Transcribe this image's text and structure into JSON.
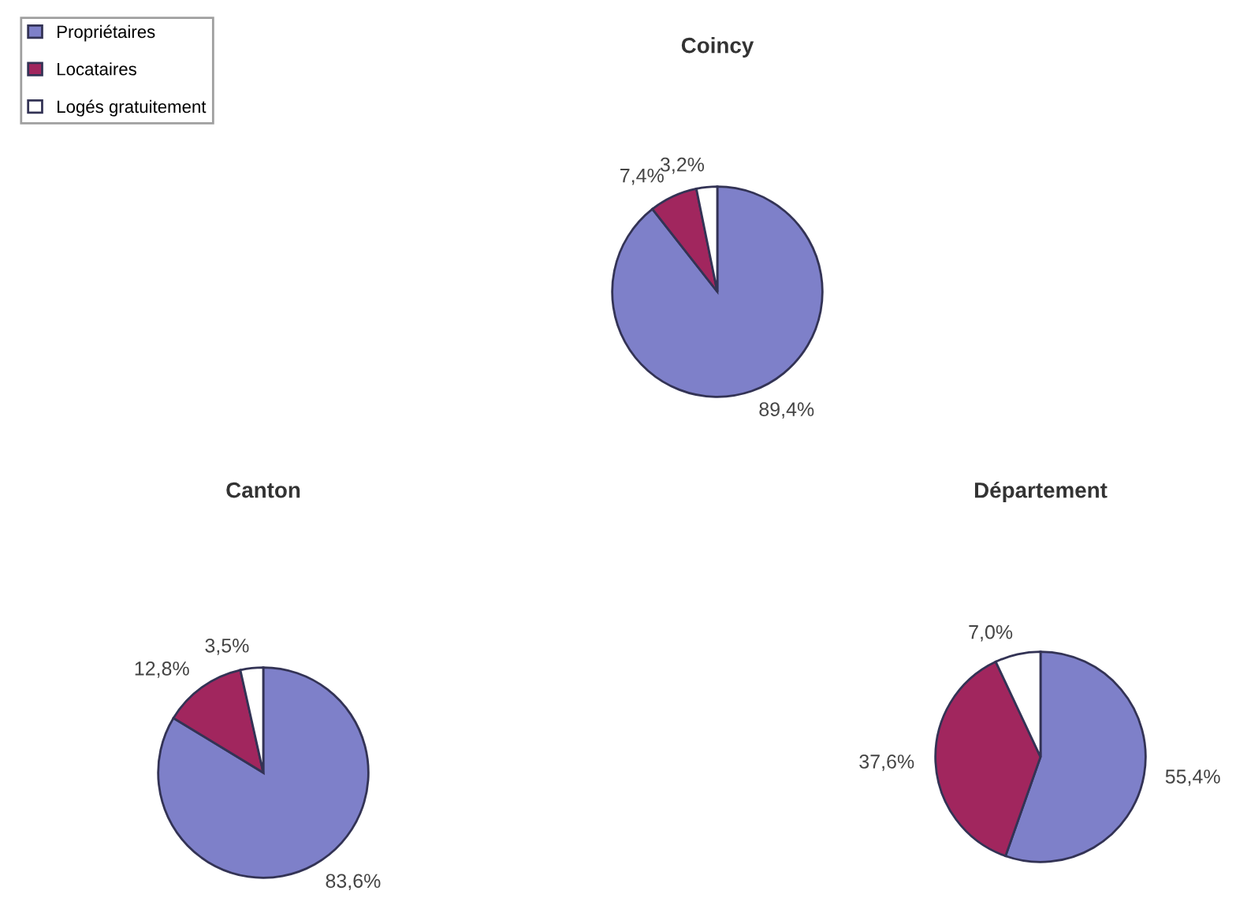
{
  "chart_data": [
    {
      "type": "pie",
      "title": "Coincy",
      "categories": [
        "Propriétaires",
        "Locataires",
        "Logés gratuitement"
      ],
      "values": [
        89.4,
        7.4,
        3.2
      ],
      "value_labels": [
        "89,4%",
        "7,4%",
        "3,2%"
      ],
      "colors": [
        "#7e80c9",
        "#a1265e",
        "#ffffff"
      ],
      "legend": "top left"
    },
    {
      "type": "pie",
      "title": "Canton",
      "values": [
        83.6,
        12.8,
        3.5
      ],
      "value_labels": [
        "83,6%",
        "12,8%",
        "3,5%"
      ],
      "colors": [
        "#7e80c9",
        "#a1265e",
        "#ffffff"
      ]
    },
    {
      "type": "pie",
      "title": "Département",
      "values": [
        55.4,
        37.6,
        7.0
      ],
      "value_labels": [
        "55,4%",
        "37,6%",
        "7,0%"
      ],
      "colors": [
        "#7e80c9",
        "#a1265e",
        "#ffffff"
      ]
    }
  ]
}
